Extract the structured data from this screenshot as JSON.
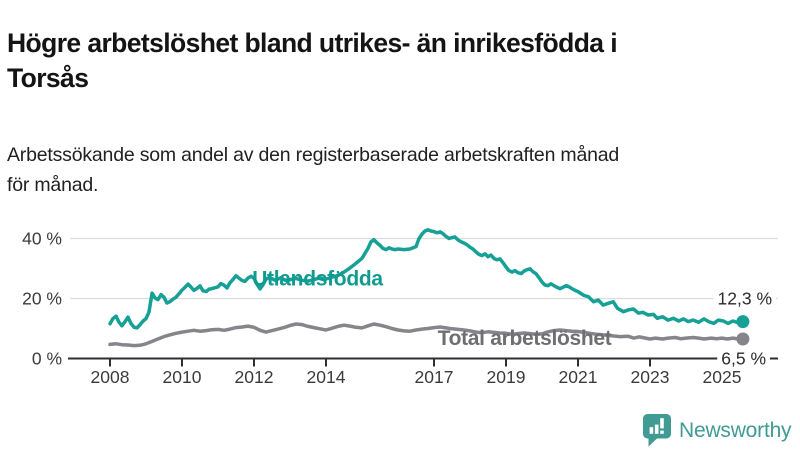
{
  "header": {
    "title_line1": "Högre arbetslöshet bland utrikes- än inrikesfödda i",
    "title_line2": "Torsås",
    "subtitle_line1": "Arbetssökande som andel av den registerbaserade arbetskraften månad",
    "subtitle_line2": "för månad."
  },
  "branding": {
    "logo_text": "Newsworthy",
    "logo_icon": "bar-chart-speech-bubble-icon",
    "logo_color": "#3F9B94"
  },
  "chart_data": {
    "type": "line",
    "title": "Högre arbetslöshet bland utrikes- än inrikesfödda i Torsås",
    "xlabel": "",
    "ylabel": "",
    "grid": true,
    "legend_position": "inline-labels",
    "xlim": [
      2007.8,
      2026.4
    ],
    "ylim": [
      0,
      45
    ],
    "y_ticks": [
      {
        "value": 0,
        "label": "0 %"
      },
      {
        "value": 20,
        "label": "20 %"
      },
      {
        "value": 40,
        "label": "40 %"
      }
    ],
    "x_ticks": [
      {
        "year": 2008,
        "label": "2008"
      },
      {
        "year": 2010,
        "label": "2010"
      },
      {
        "year": 2012,
        "label": "2012"
      },
      {
        "year": 2014,
        "label": "2014"
      },
      {
        "year": 2017,
        "label": "2017"
      },
      {
        "year": 2019,
        "label": "2019"
      },
      {
        "year": 2021,
        "label": "2021"
      },
      {
        "year": 2023,
        "label": "2023"
      },
      {
        "year": 2025,
        "label": "2025"
      }
    ],
    "axis_color": "#2f2f33",
    "gridline_color": "#dcdcdc",
    "tick_label_color": "#3b3b3b",
    "end_label_color": "#2b2b2b",
    "series": [
      {
        "name": "Utlandsfödda",
        "color": "#16A096",
        "label_color": "#109B90",
        "inline_label": {
          "text": "Utlandsfödda",
          "x": 2011.95,
          "y": 26.9
        },
        "end_label": "12,3 %",
        "end_value": 12.3,
        "end_label_y_value": 20,
        "points": [
          [
            2008.0,
            11.6
          ],
          [
            2008.08,
            13.3
          ],
          [
            2008.17,
            14.1
          ],
          [
            2008.25,
            12.1
          ],
          [
            2008.33,
            10.9
          ],
          [
            2008.42,
            12.3
          ],
          [
            2008.5,
            13.8
          ],
          [
            2008.58,
            11.7
          ],
          [
            2008.67,
            10.4
          ],
          [
            2008.75,
            10.2
          ],
          [
            2008.83,
            11.2
          ],
          [
            2008.92,
            12.5
          ],
          [
            2009.0,
            13.3
          ],
          [
            2009.08,
            15.4
          ],
          [
            2009.17,
            21.8
          ],
          [
            2009.25,
            20.2
          ],
          [
            2009.33,
            19.6
          ],
          [
            2009.42,
            21.3
          ],
          [
            2009.5,
            20.4
          ],
          [
            2009.58,
            18.5
          ],
          [
            2009.67,
            19.0
          ],
          [
            2009.75,
            19.8
          ],
          [
            2009.83,
            20.4
          ],
          [
            2009.92,
            21.6
          ],
          [
            2010.0,
            22.8
          ],
          [
            2010.08,
            23.7
          ],
          [
            2010.17,
            24.8
          ],
          [
            2010.25,
            23.8
          ],
          [
            2010.33,
            22.7
          ],
          [
            2010.42,
            23.4
          ],
          [
            2010.5,
            24.2
          ],
          [
            2010.58,
            22.6
          ],
          [
            2010.67,
            22.3
          ],
          [
            2010.75,
            23.1
          ],
          [
            2010.83,
            23.3
          ],
          [
            2010.92,
            23.6
          ],
          [
            2011.0,
            23.9
          ],
          [
            2011.08,
            25.0
          ],
          [
            2011.17,
            24.4
          ],
          [
            2011.25,
            23.5
          ],
          [
            2011.33,
            25.2
          ],
          [
            2011.42,
            26.4
          ],
          [
            2011.5,
            27.6
          ],
          [
            2011.58,
            26.8
          ],
          [
            2011.67,
            26.0
          ],
          [
            2011.75,
            25.7
          ],
          [
            2011.83,
            26.8
          ],
          [
            2011.92,
            27.4
          ],
          [
            2012.0,
            26.8
          ],
          [
            2012.08,
            24.8
          ],
          [
            2012.17,
            23.2
          ],
          [
            2012.25,
            24.6
          ],
          [
            2012.33,
            26.4
          ],
          [
            2012.42,
            27.0
          ],
          [
            2012.5,
            26.6
          ],
          [
            2012.58,
            26.1
          ],
          [
            2012.67,
            26.5
          ],
          [
            2012.75,
            26.9
          ],
          [
            2012.83,
            26.3
          ],
          [
            2012.92,
            25.9
          ],
          [
            2013.0,
            26.3
          ],
          [
            2013.17,
            26.7
          ],
          [
            2013.33,
            26.1
          ],
          [
            2013.5,
            25.8
          ],
          [
            2013.67,
            26.3
          ],
          [
            2013.83,
            26.9
          ],
          [
            2014.0,
            26.5
          ],
          [
            2014.17,
            27.1
          ],
          [
            2014.33,
            27.7
          ],
          [
            2014.5,
            28.8
          ],
          [
            2014.67,
            30.2
          ],
          [
            2014.83,
            31.7
          ],
          [
            2015.0,
            33.4
          ],
          [
            2015.08,
            35.0
          ],
          [
            2015.17,
            36.8
          ],
          [
            2015.25,
            38.9
          ],
          [
            2015.33,
            39.6
          ],
          [
            2015.42,
            38.5
          ],
          [
            2015.5,
            37.7
          ],
          [
            2015.58,
            36.7
          ],
          [
            2015.67,
            36.3
          ],
          [
            2015.75,
            36.9
          ],
          [
            2015.83,
            36.5
          ],
          [
            2015.92,
            36.3
          ],
          [
            2016.0,
            36.5
          ],
          [
            2016.17,
            36.3
          ],
          [
            2016.33,
            36.5
          ],
          [
            2016.5,
            37.3
          ],
          [
            2016.58,
            39.9
          ],
          [
            2016.67,
            41.5
          ],
          [
            2016.75,
            42.5
          ],
          [
            2016.83,
            42.9
          ],
          [
            2016.92,
            42.5
          ],
          [
            2017.0,
            42.3
          ],
          [
            2017.08,
            41.9
          ],
          [
            2017.17,
            42.2
          ],
          [
            2017.25,
            41.6
          ],
          [
            2017.33,
            40.7
          ],
          [
            2017.42,
            40.0
          ],
          [
            2017.5,
            40.3
          ],
          [
            2017.58,
            40.5
          ],
          [
            2017.67,
            39.5
          ],
          [
            2017.75,
            38.9
          ],
          [
            2017.83,
            38.5
          ],
          [
            2017.92,
            37.9
          ],
          [
            2018.0,
            37.1
          ],
          [
            2018.08,
            36.5
          ],
          [
            2018.17,
            35.5
          ],
          [
            2018.25,
            34.7
          ],
          [
            2018.33,
            34.3
          ],
          [
            2018.42,
            34.9
          ],
          [
            2018.5,
            33.9
          ],
          [
            2018.58,
            34.5
          ],
          [
            2018.67,
            33.3
          ],
          [
            2018.75,
            32.9
          ],
          [
            2018.83,
            33.2
          ],
          [
            2018.92,
            31.9
          ],
          [
            2019.0,
            30.5
          ],
          [
            2019.08,
            29.3
          ],
          [
            2019.17,
            28.8
          ],
          [
            2019.25,
            29.3
          ],
          [
            2019.33,
            28.6
          ],
          [
            2019.42,
            28.3
          ],
          [
            2019.5,
            29.1
          ],
          [
            2019.58,
            29.6
          ],
          [
            2019.67,
            29.9
          ],
          [
            2019.75,
            28.9
          ],
          [
            2019.83,
            28.3
          ],
          [
            2019.92,
            26.9
          ],
          [
            2020.0,
            25.5
          ],
          [
            2020.08,
            24.5
          ],
          [
            2020.17,
            24.3
          ],
          [
            2020.25,
            24.9
          ],
          [
            2020.33,
            24.3
          ],
          [
            2020.42,
            23.7
          ],
          [
            2020.5,
            23.3
          ],
          [
            2020.58,
            23.7
          ],
          [
            2020.67,
            24.3
          ],
          [
            2020.75,
            23.9
          ],
          [
            2020.83,
            23.3
          ],
          [
            2020.92,
            22.7
          ],
          [
            2021.0,
            22.3
          ],
          [
            2021.17,
            21.0
          ],
          [
            2021.29,
            20.6
          ],
          [
            2021.43,
            18.9
          ],
          [
            2021.56,
            19.5
          ],
          [
            2021.7,
            17.8
          ],
          [
            2021.84,
            18.4
          ],
          [
            2021.98,
            18.9
          ],
          [
            2022.1,
            16.7
          ],
          [
            2022.26,
            15.6
          ],
          [
            2022.4,
            16.2
          ],
          [
            2022.54,
            16.5
          ],
          [
            2022.68,
            15.1
          ],
          [
            2022.8,
            15.4
          ],
          [
            2022.95,
            14.5
          ],
          [
            2023.1,
            14.7
          ],
          [
            2023.2,
            13.4
          ],
          [
            2023.35,
            13.9
          ],
          [
            2023.5,
            12.8
          ],
          [
            2023.65,
            13.4
          ],
          [
            2023.8,
            12.5
          ],
          [
            2023.93,
            13.2
          ],
          [
            2024.06,
            12.3
          ],
          [
            2024.2,
            12.8
          ],
          [
            2024.35,
            12.1
          ],
          [
            2024.5,
            13.2
          ],
          [
            2024.63,
            12.3
          ],
          [
            2024.77,
            11.7
          ],
          [
            2024.9,
            12.8
          ],
          [
            2025.04,
            12.5
          ],
          [
            2025.17,
            11.7
          ],
          [
            2025.3,
            12.5
          ],
          [
            2025.43,
            12.0
          ],
          [
            2025.58,
            12.3
          ]
        ]
      },
      {
        "name": "Total arbetslöshet",
        "color": "#85858B",
        "label_color": "#6E6E73",
        "inline_label": {
          "text": "Total arbetslöshet",
          "x": 2017.1,
          "y": 7.0
        },
        "end_label": "6,5 %",
        "end_value": 6.5,
        "end_label_y_value": 0,
        "points": [
          [
            2008.0,
            4.7
          ],
          [
            2008.17,
            4.9
          ],
          [
            2008.33,
            4.6
          ],
          [
            2008.5,
            4.5
          ],
          [
            2008.67,
            4.3
          ],
          [
            2008.83,
            4.4
          ],
          [
            2009.0,
            4.9
          ],
          [
            2009.17,
            5.7
          ],
          [
            2009.33,
            6.5
          ],
          [
            2009.5,
            7.3
          ],
          [
            2009.67,
            7.9
          ],
          [
            2009.83,
            8.4
          ],
          [
            2010.0,
            8.8
          ],
          [
            2010.17,
            9.1
          ],
          [
            2010.33,
            9.4
          ],
          [
            2010.5,
            9.1
          ],
          [
            2010.67,
            9.3
          ],
          [
            2010.83,
            9.6
          ],
          [
            2011.0,
            9.7
          ],
          [
            2011.17,
            9.4
          ],
          [
            2011.33,
            9.8
          ],
          [
            2011.5,
            10.3
          ],
          [
            2011.67,
            10.5
          ],
          [
            2011.83,
            10.8
          ],
          [
            2012.0,
            10.4
          ],
          [
            2012.17,
            9.4
          ],
          [
            2012.33,
            8.8
          ],
          [
            2012.5,
            9.3
          ],
          [
            2012.67,
            9.8
          ],
          [
            2012.83,
            10.3
          ],
          [
            2013.0,
            11.0
          ],
          [
            2013.17,
            11.5
          ],
          [
            2013.33,
            11.3
          ],
          [
            2013.5,
            10.7
          ],
          [
            2013.67,
            10.3
          ],
          [
            2013.83,
            9.9
          ],
          [
            2014.0,
            9.5
          ],
          [
            2014.17,
            10.1
          ],
          [
            2014.33,
            10.7
          ],
          [
            2014.5,
            11.1
          ],
          [
            2014.67,
            10.8
          ],
          [
            2014.83,
            10.4
          ],
          [
            2015.0,
            10.2
          ],
          [
            2015.17,
            10.9
          ],
          [
            2015.33,
            11.5
          ],
          [
            2015.5,
            11.1
          ],
          [
            2015.67,
            10.6
          ],
          [
            2015.83,
            10.0
          ],
          [
            2016.0,
            9.5
          ],
          [
            2016.17,
            9.2
          ],
          [
            2016.33,
            9.1
          ],
          [
            2016.5,
            9.5
          ],
          [
            2016.67,
            9.8
          ],
          [
            2016.83,
            10.0
          ],
          [
            2017.0,
            10.3
          ],
          [
            2017.17,
            10.5
          ],
          [
            2017.33,
            10.2
          ],
          [
            2017.5,
            9.9
          ],
          [
            2017.67,
            9.7
          ],
          [
            2017.83,
            9.5
          ],
          [
            2018.0,
            9.2
          ],
          [
            2018.17,
            8.8
          ],
          [
            2018.33,
            8.6
          ],
          [
            2018.5,
            8.9
          ],
          [
            2018.67,
            8.7
          ],
          [
            2018.83,
            8.5
          ],
          [
            2019.0,
            8.4
          ],
          [
            2019.17,
            8.1
          ],
          [
            2019.33,
            8.3
          ],
          [
            2019.5,
            8.5
          ],
          [
            2019.67,
            8.3
          ],
          [
            2019.83,
            8.1
          ],
          [
            2020.0,
            8.2
          ],
          [
            2020.17,
            8.9
          ],
          [
            2020.33,
            9.3
          ],
          [
            2020.5,
            9.5
          ],
          [
            2020.67,
            9.3
          ],
          [
            2020.83,
            9.1
          ],
          [
            2021.0,
            9.0
          ],
          [
            2021.17,
            8.7
          ],
          [
            2021.33,
            8.4
          ],
          [
            2021.5,
            8.1
          ],
          [
            2021.67,
            7.9
          ],
          [
            2021.83,
            7.7
          ],
          [
            2022.0,
            7.5
          ],
          [
            2022.17,
            7.3
          ],
          [
            2022.4,
            7.4
          ],
          [
            2022.55,
            6.8
          ],
          [
            2022.7,
            7.2
          ],
          [
            2023.0,
            6.5
          ],
          [
            2023.15,
            6.8
          ],
          [
            2023.35,
            6.5
          ],
          [
            2023.5,
            6.8
          ],
          [
            2023.7,
            7.0
          ],
          [
            2023.85,
            6.6
          ],
          [
            2024.0,
            6.8
          ],
          [
            2024.2,
            7.0
          ],
          [
            2024.35,
            6.8
          ],
          [
            2024.5,
            6.5
          ],
          [
            2024.7,
            6.8
          ],
          [
            2024.85,
            6.6
          ],
          [
            2025.0,
            6.8
          ],
          [
            2025.15,
            6.5
          ],
          [
            2025.3,
            6.8
          ],
          [
            2025.45,
            6.5
          ],
          [
            2025.58,
            6.5
          ]
        ]
      }
    ]
  }
}
